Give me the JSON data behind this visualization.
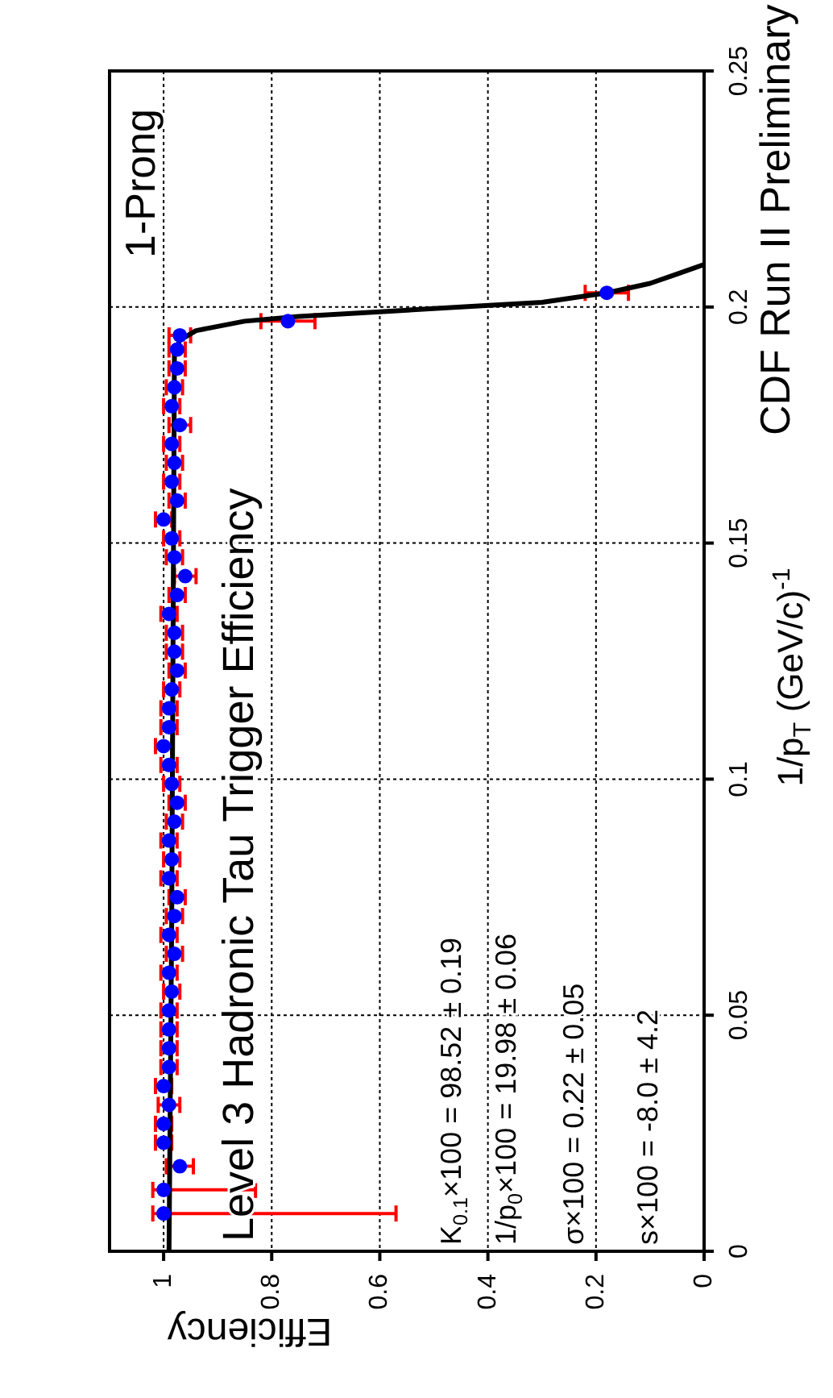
{
  "chart_data": {
    "type": "scatter",
    "title": "CDF Run II Preliminary",
    "xlabel": "Efficiency",
    "ylabel": "1/p$_{T}$  (GeV/c)$^{-1}$",
    "annotations": [
      "1-Prong",
      "Level 3 Hadronic Tau Trigger Efficiency",
      "K$_{0.1}$×100 = 98.52 ± 0.19",
      "1/p$_{0}$×100 = 19.98 ± 0.06",
      "σ×100    =  0.22 ± 0.05",
      "s×100     =  -8.0 ± 4.2"
    ],
    "xlim": [
      1.1,
      0
    ],
    "xticks": [
      0,
      0.2,
      0.4,
      0.6,
      0.8,
      1
    ],
    "ylim": [
      0,
      0.25
    ],
    "yticks": [
      0,
      0.05,
      0.1,
      0.15,
      0.2,
      0.25
    ],
    "grid": true,
    "marker": "circle",
    "series": [
      {
        "type": "scatter",
        "color": "#0000ff",
        "x": [
          1.0,
          1.0,
          0.97,
          1.0,
          1.0,
          0.99,
          1.0,
          0.99,
          0.99,
          0.99,
          0.99,
          0.985,
          0.99,
          0.98,
          0.99,
          0.98,
          0.975,
          0.99,
          0.985,
          0.99,
          0.98,
          0.975,
          0.985,
          0.99,
          1.0,
          0.99,
          0.99,
          0.985,
          0.975,
          0.98,
          0.98,
          0.99,
          0.975,
          0.96,
          0.98,
          0.985,
          1.0,
          0.975,
          0.985,
          0.98,
          0.985,
          0.97,
          0.985,
          0.98,
          0.975,
          0.975,
          0.97,
          0.77,
          0.18
        ],
        "values": [
          0.008,
          0.013,
          0.018,
          0.023,
          0.027,
          0.031,
          0.035,
          0.039,
          0.043,
          0.047,
          0.051,
          0.055,
          0.059,
          0.063,
          0.067,
          0.071,
          0.075,
          0.079,
          0.083,
          0.087,
          0.091,
          0.095,
          0.099,
          0.103,
          0.107,
          0.111,
          0.115,
          0.119,
          0.123,
          0.127,
          0.131,
          0.135,
          0.139,
          0.143,
          0.147,
          0.151,
          0.155,
          0.159,
          0.163,
          0.167,
          0.171,
          0.175,
          0.179,
          0.183,
          0.187,
          0.191,
          0.194,
          0.197,
          0.203
        ],
        "xerrors": [
          [
            0.57,
            1.02
          ],
          [
            0.83,
            1.02
          ],
          0.025,
          0.015,
          0.015,
          0.02,
          0.015,
          0.015,
          0.015,
          0.015,
          0.015,
          0.015,
          0.015,
          0.015,
          0.015,
          0.015,
          0.015,
          0.015,
          0.015,
          0.015,
          0.015,
          0.015,
          0.015,
          0.015,
          0.015,
          0.015,
          0.015,
          0.015,
          0.015,
          0.015,
          0.015,
          0.015,
          0.015,
          0.02,
          0.015,
          0.015,
          0.015,
          0.015,
          0.015,
          0.015,
          0.015,
          0.02,
          0.015,
          0.015,
          0.015,
          0.015,
          0.02,
          0.05,
          0.04
        ]
      },
      {
        "type": "line",
        "color": "#000000",
        "marker": "none",
        "x": [
          0.99,
          0.985,
          0.98,
          0.97,
          0.94,
          0.85,
          0.75,
          0.6,
          0.45,
          0.3,
          0.18,
          0.1,
          0.05,
          0.0
        ],
        "values": [
          0,
          0.07,
          0.19,
          0.193,
          0.195,
          0.197,
          0.198,
          0.199,
          0.2,
          0.201,
          0.203,
          0.205,
          0.207,
          0.209
        ]
      }
    ]
  }
}
